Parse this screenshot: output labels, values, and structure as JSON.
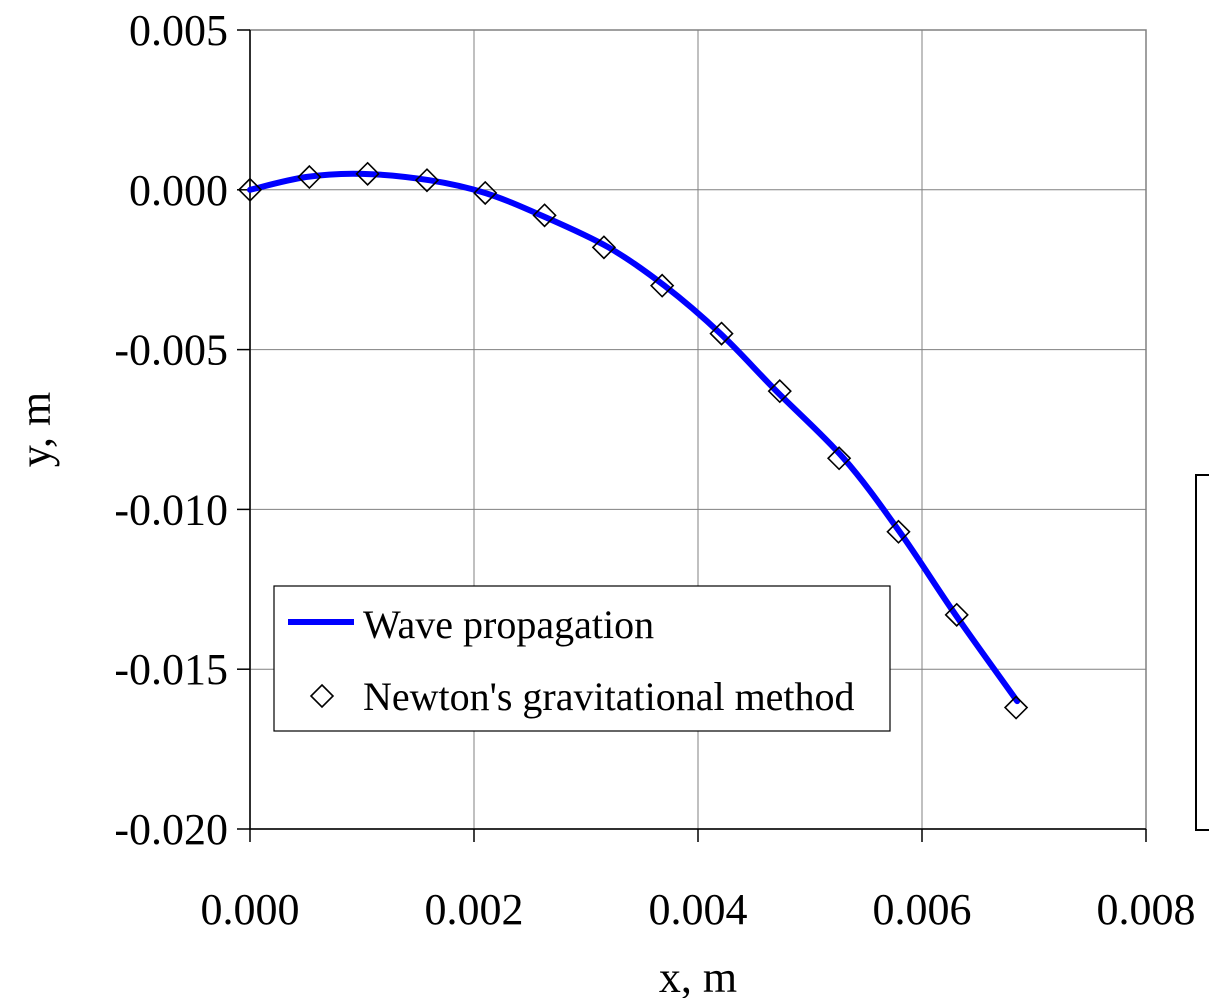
{
  "chart_data": {
    "type": "scatter",
    "title": "",
    "xlabel": "x, m",
    "ylabel": "y, m",
    "xlim": [
      0.0,
      0.008
    ],
    "ylim": [
      -0.02,
      0.005
    ],
    "x_ticks": [
      "0.000",
      "0.002",
      "0.004",
      "0.006",
      "0.008"
    ],
    "y_ticks": [
      "0.005",
      "0.000",
      "-0.005",
      "-0.010",
      "-0.015",
      "-0.020"
    ],
    "grid": true,
    "legend_position": "bottom-left",
    "series": [
      {
        "name": "Wave propagation",
        "kind": "line",
        "color": "#0000ff",
        "x": [
          0.0,
          0.0005,
          0.001,
          0.0016,
          0.0021,
          0.0026,
          0.0032,
          0.0037,
          0.0042,
          0.0047,
          0.0053,
          0.0058,
          0.0063,
          0.00685
        ],
        "y": [
          0.0,
          0.0004,
          0.0005,
          0.0003,
          -0.0001,
          -0.0008,
          -0.0018,
          -0.003,
          -0.0045,
          -0.0063,
          -0.0084,
          -0.0107,
          -0.0133,
          -0.016
        ]
      },
      {
        "name": "Newton's gravitational method",
        "kind": "marker",
        "marker": "diamond",
        "color": "#000000",
        "x": [
          0.0,
          0.00053,
          0.00105,
          0.00158,
          0.0021,
          0.00263,
          0.00316,
          0.00368,
          0.00421,
          0.00473,
          0.00526,
          0.00579,
          0.00631,
          0.00684
        ],
        "y": [
          0.0,
          0.0004,
          0.0005,
          0.0003,
          -0.0001,
          -0.0008,
          -0.0018,
          -0.003,
          -0.0045,
          -0.0063,
          -0.0084,
          -0.0107,
          -0.0133,
          -0.0162
        ]
      }
    ]
  }
}
